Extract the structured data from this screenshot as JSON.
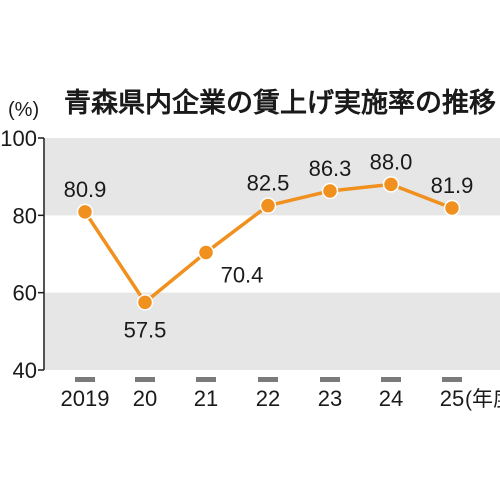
{
  "chart_data": {
    "type": "line",
    "title": "青森県内企業の賃上げ実施率の推移",
    "unit_label": "(%)",
    "x_unit_label": "(年度)",
    "categories": [
      "2019",
      "20",
      "21",
      "22",
      "23",
      "24",
      "25"
    ],
    "series": [
      {
        "values": [
          80.9,
          57.5,
          70.4,
          82.5,
          86.3,
          88.0,
          81.9
        ]
      }
    ],
    "data_labels": [
      "80.9",
      "57.5",
      "70.4",
      "82.5",
      "86.3",
      "88.0",
      "81.9"
    ],
    "ylim": [
      40,
      100
    ],
    "yticks": [
      {
        "value": 100,
        "label": "100"
      },
      {
        "value": 80,
        "label": "80"
      },
      {
        "value": 60,
        "label": "60"
      },
      {
        "value": 40,
        "label": "40"
      }
    ],
    "bands": [
      [
        80,
        100
      ],
      [
        40,
        60
      ]
    ],
    "colors": {
      "line": "#F0901E",
      "point": "#F0901E",
      "band": "#E6E6E6",
      "tick_mark": "#7A7A7A",
      "text": "#1A1A1A"
    }
  }
}
